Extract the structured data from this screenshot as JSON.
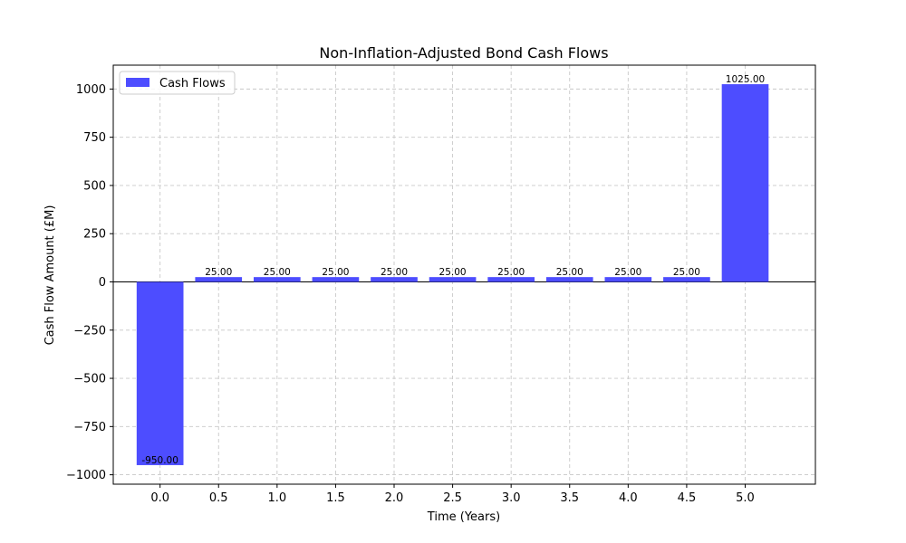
{
  "chart_data": {
    "type": "bar",
    "title": "Non-Inflation-Adjusted Bond Cash Flows",
    "xlabel": "Time (Years)",
    "ylabel": "Cash Flow Amount (£M)",
    "x": [
      0.0,
      0.5,
      1.0,
      1.5,
      2.0,
      2.5,
      3.0,
      3.5,
      4.0,
      4.5,
      5.0
    ],
    "x_tick_labels": [
      "0.0",
      "0.5",
      "1.0",
      "1.5",
      "2.0",
      "2.5",
      "3.0",
      "3.5",
      "4.0",
      "4.5",
      "5.0"
    ],
    "series": [
      {
        "name": "Cash Flows",
        "color": "#4d4dff",
        "values": [
          -950,
          25,
          25,
          25,
          25,
          25,
          25,
          25,
          25,
          25,
          1025
        ],
        "value_labels": [
          "-950.00",
          "25.00",
          "25.00",
          "25.00",
          "25.00",
          "25.00",
          "25.00",
          "25.00",
          "25.00",
          "25.00",
          "1025.00"
        ]
      }
    ],
    "y_ticks": [
      -1000,
      -750,
      -500,
      -250,
      0,
      250,
      500,
      750,
      1000
    ],
    "y_tick_labels": [
      "−1000",
      "−750",
      "−500",
      "−250",
      "0",
      "250",
      "500",
      "750",
      "1000"
    ],
    "xlim": [
      -0.4,
      5.6
    ],
    "ylim": [
      -1048.75,
      1123.75
    ],
    "grid": true,
    "legend": "top-left",
    "zero_line": true
  }
}
